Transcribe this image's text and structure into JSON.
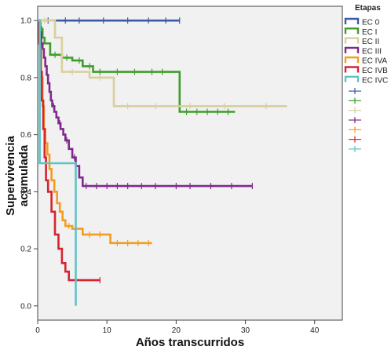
{
  "chart_data": {
    "type": "line",
    "subtype": "kaplan-meier",
    "title": "",
    "xlabel": "Años transcurridos",
    "ylabel": "Supervivencia acumulada",
    "xlim": [
      0,
      44
    ],
    "ylim": [
      -0.05,
      1.05
    ],
    "x_ticks": [
      "0",
      "10",
      "20",
      "30",
      "40"
    ],
    "y_ticks": [
      "0.0",
      "0.2",
      "0.4",
      "0.6",
      "0.8",
      "1.0"
    ],
    "legend_title": "Etapas",
    "legend_position": "right",
    "grid": false,
    "background": "#f1f1f1",
    "series": [
      {
        "name": "EC 0",
        "color": "#3b5ba5",
        "steps": [
          [
            0,
            1.0
          ],
          [
            20.5,
            1.0
          ]
        ],
        "censor": [
          1.5,
          4,
          6,
          9.5,
          13,
          16,
          18.5,
          20.5
        ]
      },
      {
        "name": "EC I",
        "color": "#3f9d2c",
        "steps": [
          [
            0,
            1.0
          ],
          [
            0.4,
            0.97
          ],
          [
            0.7,
            0.94
          ],
          [
            1.0,
            0.92
          ],
          [
            1.8,
            0.88
          ],
          [
            3.5,
            0.87
          ],
          [
            5.0,
            0.86
          ],
          [
            6.5,
            0.84
          ],
          [
            8.0,
            0.82
          ],
          [
            20.5,
            0.68
          ],
          [
            28.5,
            0.68
          ]
        ],
        "censor": [
          0.6,
          2.5,
          4.2,
          6,
          7.5,
          9,
          11.5,
          14,
          16.5,
          18,
          21.5,
          23,
          24.5,
          26,
          27.5
        ]
      },
      {
        "name": "EC II",
        "color": "#d9cf9e",
        "steps": [
          [
            0,
            1.0
          ],
          [
            2.5,
            0.94
          ],
          [
            3.5,
            0.82
          ],
          [
            7.5,
            0.8
          ],
          [
            11,
            0.7
          ],
          [
            36,
            0.7
          ]
        ],
        "censor": [
          1,
          5,
          9,
          13,
          17,
          22,
          27,
          33
        ]
      },
      {
        "name": "EC III",
        "color": "#7e2a8c",
        "steps": [
          [
            0,
            1.0
          ],
          [
            0.3,
            0.96
          ],
          [
            0.5,
            0.92
          ],
          [
            0.7,
            0.9
          ],
          [
            0.9,
            0.87
          ],
          [
            1.1,
            0.84
          ],
          [
            1.3,
            0.81
          ],
          [
            1.5,
            0.78
          ],
          [
            1.7,
            0.75
          ],
          [
            1.9,
            0.72
          ],
          [
            2.1,
            0.7
          ],
          [
            2.4,
            0.68
          ],
          [
            2.7,
            0.66
          ],
          [
            3.0,
            0.64
          ],
          [
            3.3,
            0.62
          ],
          [
            3.7,
            0.6
          ],
          [
            4.0,
            0.58
          ],
          [
            4.5,
            0.55
          ],
          [
            5.0,
            0.52
          ],
          [
            5.5,
            0.49
          ],
          [
            6.0,
            0.45
          ],
          [
            6.5,
            0.42
          ],
          [
            31,
            0.42
          ]
        ],
        "censor": [
          2.3,
          3.2,
          4.2,
          5.3,
          7,
          8.5,
          10,
          11.5,
          13,
          15,
          17,
          20,
          22,
          25,
          28,
          31
        ]
      },
      {
        "name": "EC IVA",
        "color": "#f39c1f",
        "steps": [
          [
            0,
            1.0
          ],
          [
            0.3,
            0.9
          ],
          [
            0.5,
            0.8
          ],
          [
            0.7,
            0.7
          ],
          [
            0.9,
            0.62
          ],
          [
            1.1,
            0.57
          ],
          [
            1.4,
            0.53
          ],
          [
            1.7,
            0.48
          ],
          [
            2.0,
            0.44
          ],
          [
            2.4,
            0.4
          ],
          [
            2.8,
            0.36
          ],
          [
            3.2,
            0.33
          ],
          [
            3.6,
            0.3
          ],
          [
            4.0,
            0.28
          ],
          [
            5.0,
            0.27
          ],
          [
            6.5,
            0.25
          ],
          [
            10.5,
            0.22
          ],
          [
            16.5,
            0.22
          ]
        ],
        "censor": [
          4.5,
          7.5,
          9,
          11.5,
          13,
          14.5,
          16
        ]
      },
      {
        "name": "EC IVB",
        "color": "#d62430",
        "steps": [
          [
            0,
            1.0
          ],
          [
            0.2,
            0.92
          ],
          [
            0.4,
            0.82
          ],
          [
            0.6,
            0.72
          ],
          [
            0.8,
            0.62
          ],
          [
            1.0,
            0.52
          ],
          [
            1.2,
            0.44
          ],
          [
            1.5,
            0.4
          ],
          [
            2.0,
            0.33
          ],
          [
            2.5,
            0.25
          ],
          [
            3.0,
            0.2
          ],
          [
            3.5,
            0.15
          ],
          [
            4.0,
            0.12
          ],
          [
            4.5,
            0.09
          ],
          [
            9.0,
            0.09
          ]
        ],
        "censor": [
          9.0
        ]
      },
      {
        "name": "EC IVC",
        "color": "#5cc4c8",
        "steps": [
          [
            0,
            1.0
          ],
          [
            0.3,
            0.5
          ],
          [
            5.5,
            0.0
          ]
        ],
        "censor": []
      }
    ]
  }
}
